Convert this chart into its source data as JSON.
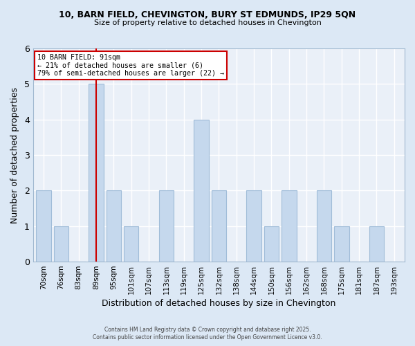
{
  "title_line1": "10, BARN FIELD, CHEVINGTON, BURY ST EDMUNDS, IP29 5QN",
  "title_line2": "Size of property relative to detached houses in Chevington",
  "xlabel": "Distribution of detached houses by size in Chevington",
  "ylabel": "Number of detached properties",
  "categories": [
    "70sqm",
    "76sqm",
    "83sqm",
    "89sqm",
    "95sqm",
    "101sqm",
    "107sqm",
    "113sqm",
    "119sqm",
    "125sqm",
    "132sqm",
    "138sqm",
    "144sqm",
    "150sqm",
    "156sqm",
    "162sqm",
    "168sqm",
    "175sqm",
    "181sqm",
    "187sqm",
    "193sqm"
  ],
  "values": [
    2,
    1,
    0,
    5,
    2,
    1,
    0,
    2,
    0,
    4,
    2,
    0,
    2,
    1,
    2,
    0,
    2,
    1,
    0,
    1,
    0
  ],
  "bar_color": "#c5d8ed",
  "bar_edge_color": "#a0bcd8",
  "highlight_index": 3,
  "highlight_line_color": "#cc0000",
  "annotation_text": "10 BARN FIELD: 91sqm\n← 21% of detached houses are smaller (6)\n79% of semi-detached houses are larger (22) →",
  "annotation_box_color": "#ffffff",
  "annotation_box_edge_color": "#cc0000",
  "ylim": [
    0,
    6
  ],
  "yticks": [
    0,
    1,
    2,
    3,
    4,
    5,
    6
  ],
  "footer_line1": "Contains HM Land Registry data © Crown copyright and database right 2025.",
  "footer_line2": "Contains public sector information licensed under the Open Government Licence v3.0.",
  "bg_color": "#dce8f5",
  "plot_bg_color": "#eaf0f8"
}
